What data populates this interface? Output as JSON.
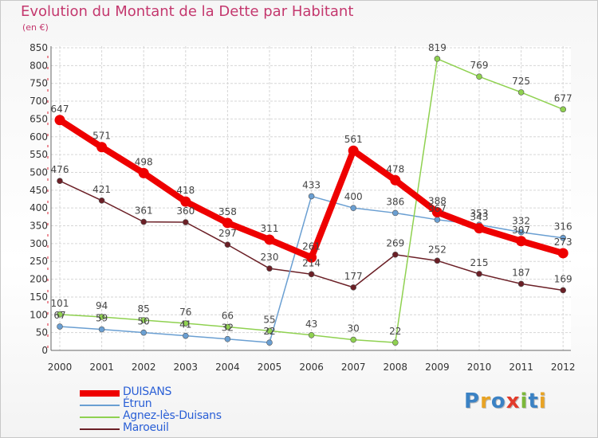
{
  "title": "Evolution du Montant de la Dette par Habitant",
  "subtitle": "(en €)",
  "logo": {
    "text": "Proxiti",
    "letter_colors": [
      "#3b82c4",
      "#e8a324",
      "#3b82c4",
      "#e23b2b",
      "#7cb83a",
      "#3b82c4",
      "#e8a324"
    ]
  },
  "chart_data": {
    "type": "line",
    "x": [
      "2000",
      "2001",
      "2002",
      "2003",
      "2004",
      "2005",
      "2006",
      "2007",
      "2008",
      "2009",
      "2010",
      "2011",
      "2012"
    ],
    "ylim": [
      0,
      850
    ],
    "yticks": [
      "0",
      "50",
      "100",
      "150",
      "200",
      "250",
      "300",
      "350",
      "400",
      "450",
      "500",
      "550",
      "600",
      "650",
      "700",
      "750",
      "800",
      "850"
    ],
    "grid": true,
    "legend_position": "bottom-left",
    "series": [
      {
        "name": "DUISANS",
        "color": "#ee0000",
        "values": [
          647,
          571,
          498,
          418,
          358,
          311,
          261,
          561,
          478,
          388,
          343,
          307,
          273
        ],
        "labels": [
          "647",
          "571",
          "498",
          "418",
          "358",
          "311",
          "261",
          "561",
          "478",
          "388",
          "343",
          "307",
          "273"
        ]
      },
      {
        "name": "Étrun",
        "color": "#6a9fd2",
        "values": [
          67,
          59,
          50,
          41,
          32,
          22,
          433,
          400,
          386,
          367,
          353,
          332,
          316
        ],
        "labels": [
          "67",
          "59",
          "50",
          "41",
          "32",
          "22",
          "433",
          "400",
          "386",
          "367",
          "353",
          "332",
          "316"
        ]
      },
      {
        "name": "Agnez-lès-Duisans",
        "color": "#8fd150",
        "values": [
          101,
          94,
          85,
          76,
          66,
          55,
          43,
          30,
          22,
          819,
          769,
          725,
          677
        ],
        "labels": [
          "101",
          "94",
          "85",
          "76",
          "66",
          "55",
          "43",
          "30",
          "22",
          "819",
          "769",
          "725",
          "677"
        ]
      },
      {
        "name": "Maroeuil",
        "color": "#6b1f26",
        "values": [
          476,
          421,
          361,
          360,
          297,
          230,
          214,
          177,
          269,
          252,
          215,
          187,
          169
        ],
        "labels": [
          "476",
          "421",
          "361",
          "360",
          "297",
          "230",
          "214",
          "177",
          "269",
          "252",
          "215",
          "187",
          "169"
        ]
      }
    ]
  }
}
